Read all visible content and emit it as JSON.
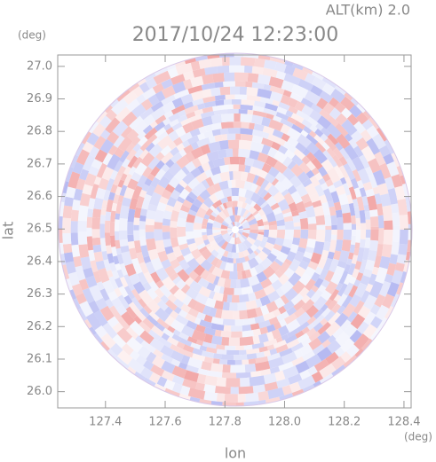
{
  "chart_data": {
    "type": "radar-ppi",
    "title": "2017/10/24 12:23:00",
    "altitude_label": "ALT(km) 2.0",
    "x_label": "lon",
    "y_label": "lat",
    "x_unit": "(deg)",
    "y_unit": "(deg)",
    "xlim": [
      127.24,
      128.424
    ],
    "ylim": [
      25.95,
      27.035
    ],
    "xticks": [
      127.4,
      127.6,
      127.8,
      {
        "value": 128,
        "label": "128.0"
      },
      128.2,
      128.4
    ],
    "yticks": [
      {
        "value": 26,
        "label": "26.0"
      },
      26.1,
      26.2,
      26.3,
      26.4,
      26.5,
      26.6,
      26.7,
      26.8,
      26.9,
      {
        "value": 27,
        "label": "27.0"
      }
    ]
  }
}
